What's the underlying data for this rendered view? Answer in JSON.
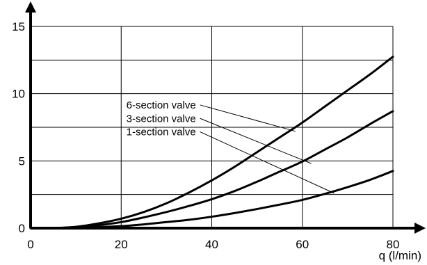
{
  "chart_data": {
    "type": "line",
    "xlabel": "q (l/min)",
    "ylabel": "",
    "xlim": [
      0,
      80
    ],
    "ylim": [
      0,
      15
    ],
    "x_ticks": [
      0,
      20,
      40,
      60,
      80
    ],
    "y_ticks": [
      0,
      5,
      10,
      15
    ],
    "grid": true,
    "minor_y_grid_step": 2.5,
    "series": [
      {
        "name": "6-section valve",
        "x": [
          0,
          5,
          10,
          15,
          20,
          25,
          30,
          35,
          40,
          45,
          50,
          55,
          60,
          65,
          70,
          75,
          80
        ],
        "values": [
          0,
          0.01,
          0.1,
          0.35,
          0.7,
          1.2,
          1.85,
          2.65,
          3.55,
          4.55,
          5.65,
          6.75,
          7.85,
          9.05,
          10.25,
          11.45,
          12.75
        ]
      },
      {
        "name": "3-section valve",
        "x": [
          0,
          5,
          10,
          15,
          20,
          25,
          30,
          35,
          40,
          45,
          50,
          55,
          60,
          65,
          70,
          75,
          80
        ],
        "values": [
          0,
          0.01,
          0.08,
          0.22,
          0.45,
          0.8,
          1.2,
          1.65,
          2.15,
          2.75,
          3.45,
          4.2,
          4.95,
          5.85,
          6.75,
          7.75,
          8.7
        ]
      },
      {
        "name": "1-section valve",
        "x": [
          0,
          5,
          10,
          15,
          20,
          25,
          30,
          35,
          40,
          45,
          50,
          55,
          60,
          65,
          70,
          75,
          80
        ],
        "values": [
          0,
          0.0,
          0.03,
          0.08,
          0.15,
          0.28,
          0.45,
          0.62,
          0.85,
          1.12,
          1.42,
          1.75,
          2.1,
          2.55,
          3.05,
          3.6,
          4.25
        ]
      }
    ],
    "annotations": [
      {
        "text": "6-section valve",
        "label_at": [
          36.5,
          8.9
        ],
        "leader_to": [
          58.5,
          7.2
        ]
      },
      {
        "text": "3-section valve",
        "label_at": [
          36.5,
          7.9
        ],
        "leader_to": [
          62,
          4.8
        ]
      },
      {
        "text": "1-section valve",
        "label_at": [
          36.5,
          6.9
        ],
        "leader_to": [
          67,
          2.6
        ]
      }
    ]
  }
}
